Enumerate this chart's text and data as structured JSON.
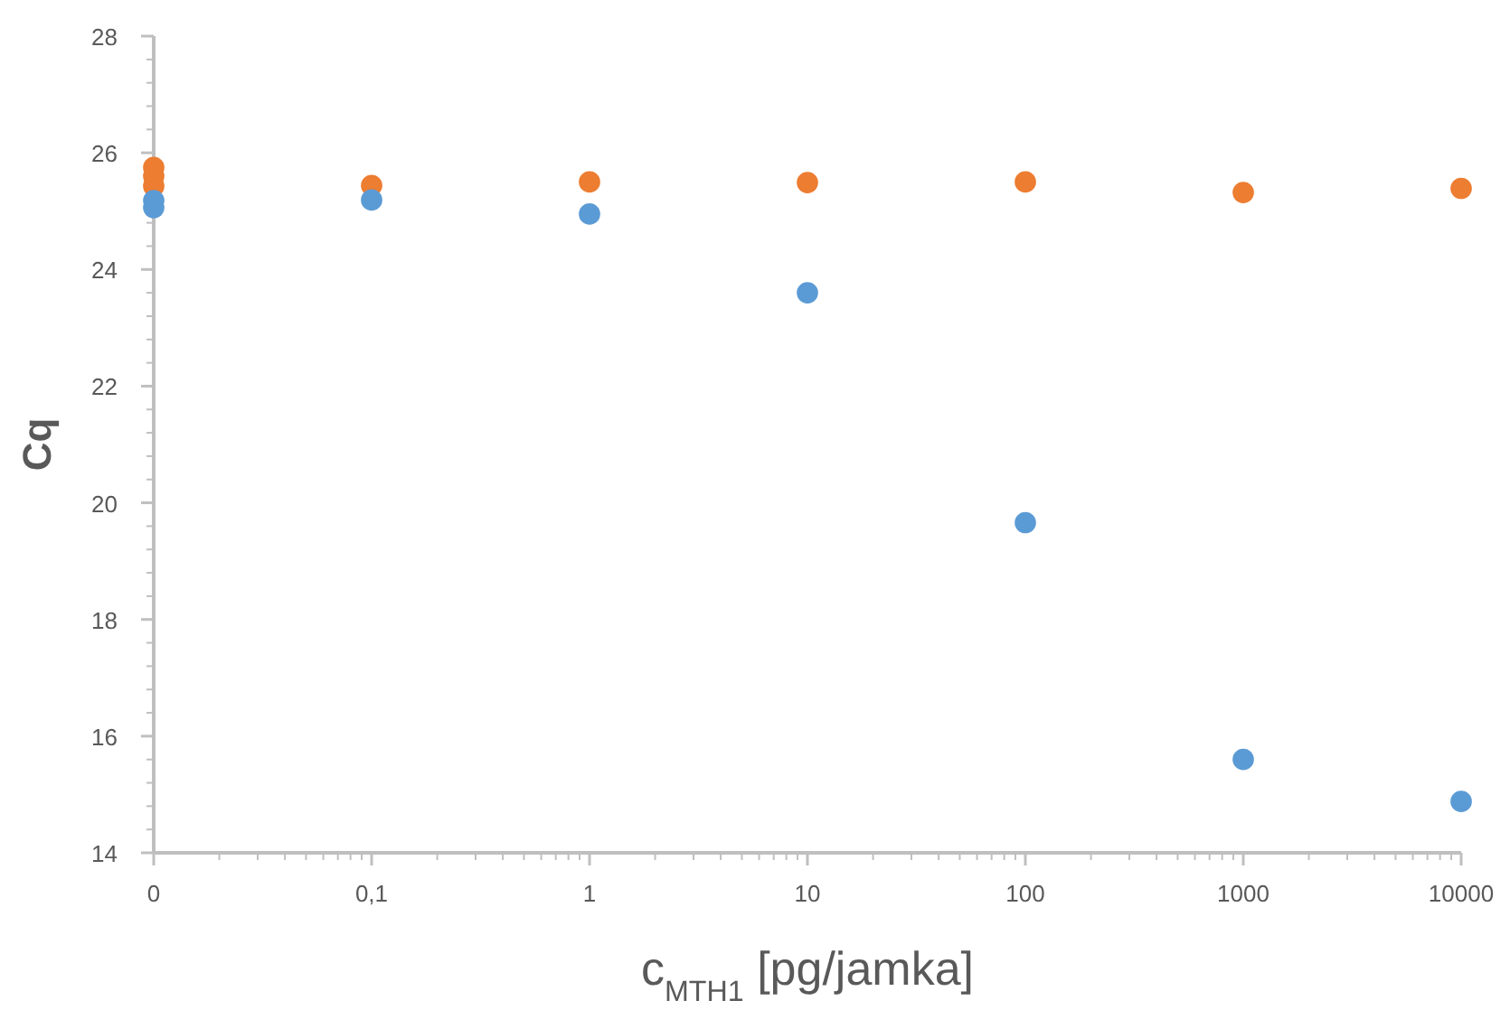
{
  "chart_data": {
    "type": "scatter",
    "xlabel": "c$_{MTH1}$ [pg/jamka]",
    "ylabel": "Cq",
    "log": "x",
    "marker": "circle",
    "grid": false,
    "xlim": [
      0.01,
      10000
    ],
    "xticks": [
      {
        "value": 0.01,
        "label": "0"
      },
      {
        "value": 0.1,
        "label": "0,1"
      },
      1,
      10,
      100,
      1000,
      10000
    ],
    "ylim": [
      14,
      28
    ],
    "yticks": [
      14,
      16,
      18,
      20,
      22,
      24,
      26,
      28
    ],
    "series": [
      {
        "color": "#ed7d31",
        "x": [
          0.01,
          0.01,
          0.01,
          0.1,
          1,
          10,
          100,
          1000,
          10000
        ],
        "values": [
          25.75,
          25.6,
          25.43,
          25.44,
          25.5,
          25.49,
          25.5,
          25.32,
          25.39
        ]
      },
      {
        "color": "#5b9bd5",
        "x": [
          0.01,
          0.01,
          0.1,
          1,
          10,
          100,
          1000,
          10000
        ],
        "values": [
          25.18,
          25.06,
          25.19,
          24.95,
          23.6,
          19.66,
          15.6,
          14.88
        ]
      }
    ]
  }
}
